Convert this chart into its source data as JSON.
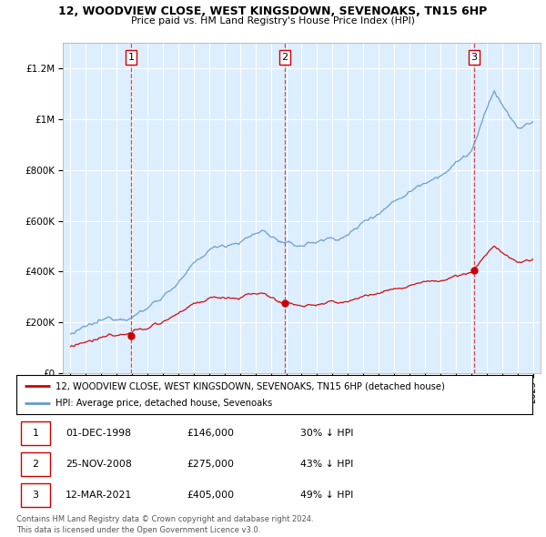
{
  "title": "12, WOODVIEW CLOSE, WEST KINGSDOWN, SEVENOAKS, TN15 6HP",
  "subtitle": "Price paid vs. HM Land Registry's House Price Index (HPI)",
  "legend_line1": "12, WOODVIEW CLOSE, WEST KINGSDOWN, SEVENOAKS, TN15 6HP (detached house)",
  "legend_line2": "HPI: Average price, detached house, Sevenoaks",
  "footer1": "Contains HM Land Registry data © Crown copyright and database right 2024.",
  "footer2": "This data is licensed under the Open Government Licence v3.0.",
  "transactions": [
    {
      "num": "1",
      "date": "01-DEC-1998",
      "price": "£146,000",
      "pct": "30% ↓ HPI",
      "year": 1998.92,
      "price_val": 146000
    },
    {
      "num": "2",
      "date": "25-NOV-2008",
      "price": "£275,000",
      "pct": "43% ↓ HPI",
      "year": 2008.9,
      "price_val": 275000
    },
    {
      "num": "3",
      "date": "12-MAR-2021",
      "price": "£405,000",
      "pct": "49% ↓ HPI",
      "year": 2021.2,
      "price_val": 405000
    }
  ],
  "red_color": "#cc0000",
  "blue_color": "#6699cc",
  "bg_color": "#ddeeff",
  "ylim": [
    0,
    1300000
  ],
  "xlim_start": 1994.5,
  "xlim_end": 2025.5
}
